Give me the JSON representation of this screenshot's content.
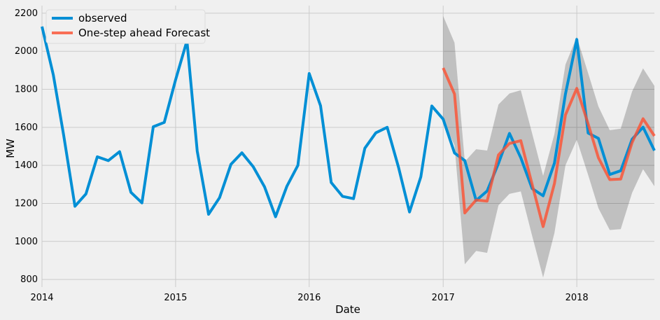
{
  "chart_data": {
    "type": "line",
    "title": "",
    "xlabel": "Date",
    "ylabel": "MW",
    "xlim": [
      "2014-01-01",
      "2018-08-01"
    ],
    "ylim": [
      760,
      2240
    ],
    "x_ticks": [
      "2014",
      "2015",
      "2016",
      "2017",
      "2018"
    ],
    "y_ticks": [
      800,
      1000,
      1200,
      1400,
      1600,
      1800,
      2000,
      2200
    ],
    "grid": true,
    "legend_position": "top-left",
    "series": [
      {
        "name": "observed",
        "color": "#008fd5",
        "x": [
          "2014-01-01",
          "2014-02-01",
          "2014-03-01",
          "2014-04-01",
          "2014-05-01",
          "2014-06-01",
          "2014-07-01",
          "2014-08-01",
          "2014-09-01",
          "2014-10-01",
          "2014-11-01",
          "2014-12-01",
          "2015-01-01",
          "2015-02-01",
          "2015-03-01",
          "2015-04-01",
          "2015-05-01",
          "2015-06-01",
          "2015-07-01",
          "2015-08-01",
          "2015-09-01",
          "2015-10-01",
          "2015-11-01",
          "2015-12-01",
          "2016-01-01",
          "2016-02-01",
          "2016-03-01",
          "2016-04-01",
          "2016-05-01",
          "2016-06-01",
          "2016-07-01",
          "2016-08-01",
          "2016-09-01",
          "2016-10-01",
          "2016-11-01",
          "2016-12-01",
          "2017-01-01",
          "2017-02-01",
          "2017-03-01",
          "2017-04-01",
          "2017-05-01",
          "2017-06-01",
          "2017-07-01",
          "2017-08-01",
          "2017-09-01",
          "2017-10-01",
          "2017-11-01",
          "2017-12-01",
          "2018-01-01",
          "2018-02-01",
          "2018-03-01",
          "2018-04-01",
          "2018-05-01",
          "2018-06-01",
          "2018-07-01",
          "2018-08-01"
        ],
        "values": [
          2130,
          1875,
          1560,
          1185,
          1250,
          1445,
          1425,
          1472,
          1258,
          1203,
          1603,
          1626,
          1850,
          2055,
          1475,
          1143,
          1230,
          1405,
          1466,
          1393,
          1287,
          1130,
          1290,
          1400,
          1883,
          1713,
          1310,
          1237,
          1225,
          1490,
          1571,
          1600,
          1390,
          1155,
          1340,
          1712,
          1643,
          1465,
          1425,
          1215,
          1265,
          1410,
          1568,
          1440,
          1278,
          1240,
          1412,
          1775,
          2062,
          1570,
          1542,
          1352,
          1372,
          1537,
          1601,
          1478
        ]
      },
      {
        "name": "One-step ahead Forecast",
        "color": "#fc4f30",
        "x": [
          "2017-01-01",
          "2017-02-01",
          "2017-03-01",
          "2017-04-01",
          "2017-05-01",
          "2017-06-01",
          "2017-07-01",
          "2017-08-01",
          "2017-09-01",
          "2017-10-01",
          "2017-11-01",
          "2017-12-01",
          "2018-01-01",
          "2018-02-01",
          "2018-03-01",
          "2018-04-01",
          "2018-05-01",
          "2018-06-01",
          "2018-07-01",
          "2018-08-01"
        ],
        "values": [
          1912,
          1775,
          1150,
          1218,
          1212,
          1455,
          1515,
          1530,
          1300,
          1078,
          1305,
          1665,
          1805,
          1618,
          1440,
          1325,
          1328,
          1520,
          1645,
          1555
        ],
        "ci_lower": [
          1640,
          1505,
          880,
          950,
          940,
          1190,
          1250,
          1263,
          1030,
          810,
          1045,
          1400,
          1535,
          1350,
          1175,
          1060,
          1065,
          1255,
          1380,
          1290
        ],
        "ci_upper": [
          2185,
          2045,
          1420,
          1485,
          1478,
          1720,
          1778,
          1795,
          1568,
          1345,
          1565,
          1930,
          2075,
          1885,
          1710,
          1585,
          1593,
          1788,
          1910,
          1818
        ]
      }
    ]
  }
}
